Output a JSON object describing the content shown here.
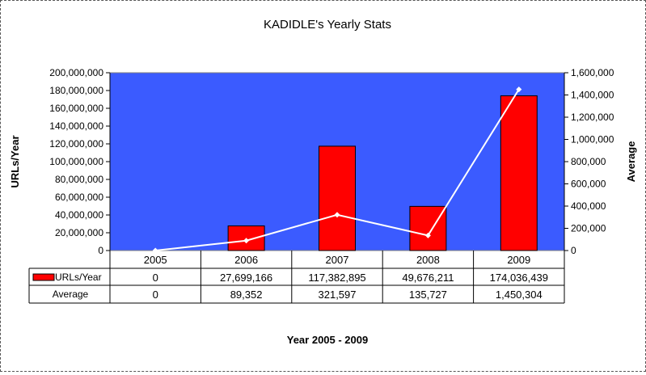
{
  "chart_data": {
    "type": "bar",
    "title": "KADIDLE's Yearly Stats",
    "xlabel": "Year 2005 - 2009",
    "ylabel": "URLs/Year",
    "y2label": "Average",
    "categories": [
      "2005",
      "2006",
      "2007",
      "2008",
      "2009"
    ],
    "ylim": [
      0,
      200000000
    ],
    "y_ticks": [
      "0",
      "20,000,000",
      "40,000,000",
      "60,000,000",
      "80,000,000",
      "100,000,000",
      "120,000,000",
      "140,000,000",
      "160,000,000",
      "180,000,000",
      "200,000,000"
    ],
    "y2lim": [
      0,
      1600000
    ],
    "y2_ticks": [
      "0",
      "200,000",
      "400,000",
      "600,000",
      "800,000",
      "1,000,000",
      "1,200,000",
      "1,400,000",
      "1,600,000"
    ],
    "plot_background": "#3b5bff",
    "grid": false,
    "legend_placement": "data-table",
    "series": [
      {
        "name": "URLs/Year",
        "type": "bar",
        "axis": "left",
        "color": "#ff0000",
        "values": [
          0,
          27699166,
          117382895,
          49676211,
          174036439
        ],
        "labels": [
          "0",
          "27,699,166",
          "117,382,895",
          "49,676,211",
          "174,036,439"
        ]
      },
      {
        "name": "Average",
        "type": "line",
        "axis": "right",
        "color": "#ffffff",
        "values": [
          0,
          89352,
          321597,
          135727,
          1450304
        ],
        "labels": [
          "0",
          "89,352",
          "321,597",
          "135,727",
          "1,450,304"
        ]
      }
    ]
  }
}
